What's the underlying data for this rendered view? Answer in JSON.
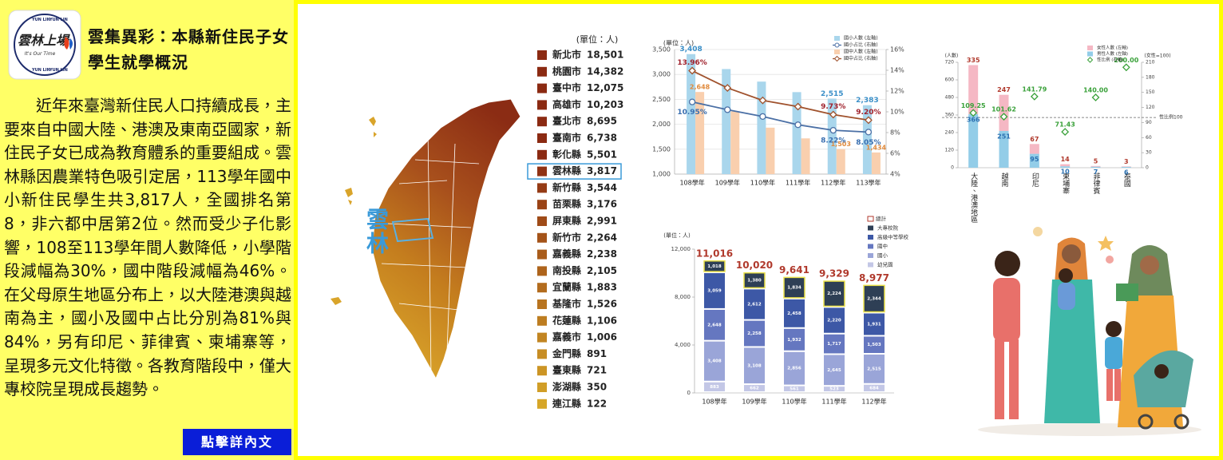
{
  "logo": {
    "ring": "YUN LIN",
    "name": "雲林上場",
    "slogan": "It's Our Time"
  },
  "title": "雲集異彩：本縣新住民子女學生就學概況",
  "body": "近年來臺灣新住民人口持續成長，主要來自中國大陸、港澳及東南亞國家，新住民子女已成為教育體系的重要組成。雲林縣因農業特色吸引定居，113學年國中小新住民學生共3,817人，全國排名第8，非六都中居第2位。然而受少子化影響，108至113學年間人數降低，小學階段減幅為30%，國中階段減幅為46%。在父母原生地區分布上，以大陸港澳與越南為主，國小及國中占比分別為81%與84%，另有印尼、菲律賓、柬埔寨等，呈現多元文化特徵。各教育階段中，僅大專校院呈現成長趨勢。",
  "button": "點擊詳內文",
  "map": {
    "label": "雲林"
  },
  "ranking": {
    "unit": "(單位：人)",
    "highlight": "雲林縣",
    "items": [
      {
        "name": "新北市",
        "value": "18,501"
      },
      {
        "name": "桃園市",
        "value": "14,382"
      },
      {
        "name": "臺中市",
        "value": "12,075"
      },
      {
        "name": "高雄市",
        "value": "10,203"
      },
      {
        "name": "臺北市",
        "value": "8,695"
      },
      {
        "name": "臺南市",
        "value": "6,738"
      },
      {
        "name": "彰化縣",
        "value": "5,501"
      },
      {
        "name": "雲林縣",
        "value": "3,817"
      },
      {
        "name": "新竹縣",
        "value": "3,544"
      },
      {
        "name": "苗栗縣",
        "value": "3,176"
      },
      {
        "name": "屏東縣",
        "value": "2,991"
      },
      {
        "name": "新竹市",
        "value": "2,264"
      },
      {
        "name": "嘉義縣",
        "value": "2,238"
      },
      {
        "name": "南投縣",
        "value": "2,105"
      },
      {
        "name": "宜蘭縣",
        "value": "1,883"
      },
      {
        "name": "基隆市",
        "value": "1,526"
      },
      {
        "name": "花蓮縣",
        "value": "1,106"
      },
      {
        "name": "嘉義市",
        "value": "1,006"
      },
      {
        "name": "金門縣",
        "value": "891"
      },
      {
        "name": "臺東縣",
        "value": "721"
      },
      {
        "name": "澎湖縣",
        "value": "350"
      },
      {
        "name": "連江縣",
        "value": "122"
      }
    ]
  },
  "chart_data": [
    {
      "type": "combo",
      "ylabel": "(單位：人)",
      "categories": [
        "108學年",
        "109學年",
        "110學年",
        "111學年",
        "112學年",
        "113學年"
      ],
      "series": [
        {
          "name": "國小人數 (左軸)",
          "type": "bar",
          "color": "#a9d6ec",
          "values": [
            3408,
            3108,
            2856,
            2645,
            2515,
            2383
          ],
          "value_labels": [
            "3,408",
            null,
            null,
            null,
            "2,515",
            "2,383"
          ]
        },
        {
          "name": "國小占比 (右軸)",
          "type": "line",
          "axis": "y2",
          "marker": "circle",
          "color": "#4a6fa5",
          "values": [
            10.95,
            10.2,
            9.55,
            8.75,
            8.22,
            8.05
          ],
          "value_labels": [
            "10.95%",
            null,
            null,
            null,
            "8.22%",
            "8.05%"
          ]
        },
        {
          "name": "國中人數 (左軸)",
          "type": "bar",
          "color": "#f9cfae",
          "values": [
            2648,
            2258,
            1932,
            1717,
            1503,
            1434
          ],
          "value_labels": [
            "2,648",
            null,
            null,
            null,
            "1,503",
            "1,434"
          ]
        },
        {
          "name": "國中占比 (右軸)",
          "type": "line",
          "axis": "y2",
          "marker": "diamond",
          "color": "#a0522d",
          "values": [
            13.96,
            12.3,
            11.1,
            10.5,
            9.73,
            9.2
          ],
          "value_labels": [
            "13.96%",
            null,
            null,
            null,
            "9.73%",
            "9.20%"
          ]
        }
      ],
      "ylim": [
        1000,
        3500
      ],
      "yticks": [
        {
          "value": 1000,
          "label": "1,000"
        },
        {
          "value": 1500,
          "label": "1,500"
        },
        {
          "value": 2000,
          "label": "2,000"
        },
        {
          "value": 2500,
          "label": "2,500"
        },
        {
          "value": 3000,
          "label": "3,000"
        },
        {
          "value": 3500,
          "label": "3,500"
        }
      ],
      "y2lim": [
        4,
        16
      ],
      "y2ticks": [
        {
          "value": 4,
          "label": "4%"
        },
        {
          "value": 6,
          "label": "6%"
        },
        {
          "value": 8,
          "label": "8%"
        },
        {
          "value": 10,
          "label": "10%"
        },
        {
          "value": 12,
          "label": "12%"
        },
        {
          "value": 14,
          "label": "14%"
        },
        {
          "value": 16,
          "label": "16%"
        }
      ],
      "grid": true
    },
    {
      "type": "combo",
      "stacked": true,
      "ylabel": "(人數)",
      "y2label": "(女性=100)",
      "categories": [
        "大陸、港澳地區",
        "越南",
        "印尼",
        "柬埔寨",
        "菲律賓",
        "泰國"
      ],
      "series": [
        {
          "name": "女性人數 (左軸)",
          "type": "bar",
          "color": "#f5b8c4",
          "values": [
            335,
            247,
            67,
            14,
            5,
            3
          ]
        },
        {
          "name": "男性人數 (左軸)",
          "type": "bar",
          "color": "#93cde8",
          "values": [
            366,
            251,
            95,
            10,
            7,
            6
          ]
        },
        {
          "name": "性比例 (右軸)",
          "type": "line",
          "axis": "y2",
          "marker": "diamond",
          "connect": false,
          "color": "#3aa13a",
          "values": [
            109.25,
            101.62,
            141.79,
            71.43,
            140,
            200
          ],
          "value_labels": [
            "109.25",
            "101.62",
            "141.79",
            "71.43",
            "140.00",
            "200.00"
          ]
        }
      ],
      "ylim": [
        0,
        720
      ],
      "yticks": [
        0,
        120,
        240,
        360,
        480,
        600,
        720
      ],
      "y2lim": [
        0,
        210
      ],
      "y2ticks": [
        0,
        30,
        60,
        90,
        120,
        150,
        180,
        210
      ],
      "ref_line": {
        "value": 100,
        "axis": "y2",
        "label": "性比例100"
      },
      "grid": false
    },
    {
      "type": "bar",
      "stacked": true,
      "ylabel": "(單位：人)",
      "total_name": "總計",
      "total_labels": [
        "11,016",
        "10,020",
        "9,641",
        "9,329",
        "8,977"
      ],
      "categories": [
        "108學年",
        "109學年",
        "110學年",
        "111學年",
        "112學年"
      ],
      "series": [
        {
          "name": "大專校院",
          "type": "bar",
          "color": "#2e3f55",
          "values": [
            1018,
            1380,
            1834,
            2224,
            2344
          ],
          "value_labels": [
            "1,018",
            "1,380",
            "1,834",
            "2,224",
            "2,344"
          ]
        },
        {
          "name": "高級中等學校",
          "type": "bar",
          "color": "#3d58a6",
          "values": [
            3059,
            2612,
            2458,
            2220,
            1931
          ],
          "value_labels": [
            "3,059",
            "2,612",
            "2,458",
            "2,220",
            "1,931"
          ]
        },
        {
          "name": "國中",
          "type": "bar",
          "color": "#6577c0",
          "values": [
            2648,
            2258,
            1932,
            1717,
            1503
          ],
          "value_labels": [
            "2,648",
            "2,258",
            "1,932",
            "1,717",
            "1,503"
          ]
        },
        {
          "name": "國小",
          "type": "bar",
          "color": "#9aa5d8",
          "values": [
            3408,
            3108,
            2856,
            2645,
            2515
          ],
          "value_labels": [
            "3,408",
            "3,108",
            "2,856",
            "2,645",
            "2,515"
          ]
        },
        {
          "name": "幼兒園",
          "type": "bar",
          "color": "#c3c7e6",
          "values": [
            883,
            662,
            561,
            523,
            684
          ]
        }
      ],
      "ylim": [
        0,
        12000
      ],
      "yticks": [
        0,
        {
          "value": 4000,
          "label": "4,000"
        },
        {
          "value": 8000,
          "label": "8,000"
        },
        {
          "value": 12000,
          "label": "12,000"
        }
      ],
      "grid": false
    }
  ]
}
